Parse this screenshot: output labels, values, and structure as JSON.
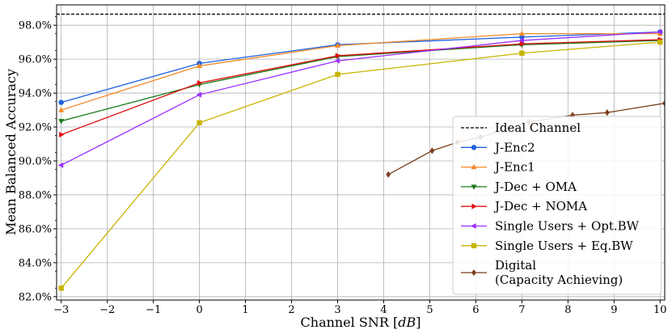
{
  "chart_data": {
    "type": "line",
    "xlabel": "Channel SNR",
    "xlabel_unit": "dB",
    "ylabel": "Mean Balanced Accuracy",
    "xlim": [
      -3.1,
      10.1
    ],
    "ylim": [
      81.8,
      99.2
    ],
    "xticks": [
      "−3",
      "−2",
      "−1",
      "0",
      "1",
      "2",
      "3",
      "4",
      "5",
      "6",
      "7",
      "8",
      "9",
      "10"
    ],
    "yticks": [
      "82.0%",
      "84.0%",
      "86.0%",
      "88.0%",
      "90.0%",
      "92.0%",
      "94.0%",
      "96.0%",
      "98.0%"
    ],
    "grid": true,
    "legend_position": "lower-right",
    "ideal_channel": {
      "name": "Ideal Channel",
      "value": 98.65,
      "color": "#000000",
      "style": "dashed"
    },
    "series": [
      {
        "name": "J-Enc2",
        "color": "#1f5fe0",
        "marker": "circle",
        "x": [
          -3,
          0,
          3,
          7,
          10
        ],
        "y": [
          93.45,
          95.75,
          96.85,
          97.3,
          97.6
        ]
      },
      {
        "name": "J-Enc1",
        "color": "#f08a28",
        "marker": "triangle-up",
        "x": [
          -3,
          0,
          3,
          7,
          10
        ],
        "y": [
          93.0,
          95.6,
          96.8,
          97.5,
          97.5
        ]
      },
      {
        "name": "J-Dec + OMA",
        "color": "#1a7a1a",
        "marker": "triangle-down",
        "x": [
          -3,
          0,
          3,
          7,
          10
        ],
        "y": [
          92.35,
          94.5,
          96.15,
          96.85,
          97.1
        ]
      },
      {
        "name": "J-Dec + NOMA",
        "color": "#e01010",
        "marker": "triangle-right",
        "x": [
          -3,
          0,
          3,
          7,
          10
        ],
        "y": [
          91.55,
          94.6,
          96.2,
          96.9,
          97.15
        ]
      },
      {
        "name": "Single Users + Opt.BW",
        "color": "#9b30ff",
        "marker": "triangle-left",
        "x": [
          -3,
          0,
          3,
          7,
          10
        ],
        "y": [
          89.75,
          93.9,
          95.9,
          97.1,
          97.6
        ]
      },
      {
        "name": "Single Users + Eq.BW",
        "color": "#c8b400",
        "marker": "square",
        "x": [
          -3,
          0,
          3,
          7,
          10
        ],
        "y": [
          82.5,
          92.25,
          95.1,
          96.35,
          97.0
        ]
      },
      {
        "name": "Digital\n(Capacity Achieving)",
        "color": "#7b3f1e",
        "marker": "diamond",
        "x": [
          4.1,
          5.05,
          5.6,
          6.1,
          7.15,
          8.1,
          8.85,
          10.1
        ],
        "y": [
          89.2,
          90.6,
          91.1,
          91.4,
          92.3,
          92.7,
          92.85,
          93.4
        ]
      }
    ]
  }
}
